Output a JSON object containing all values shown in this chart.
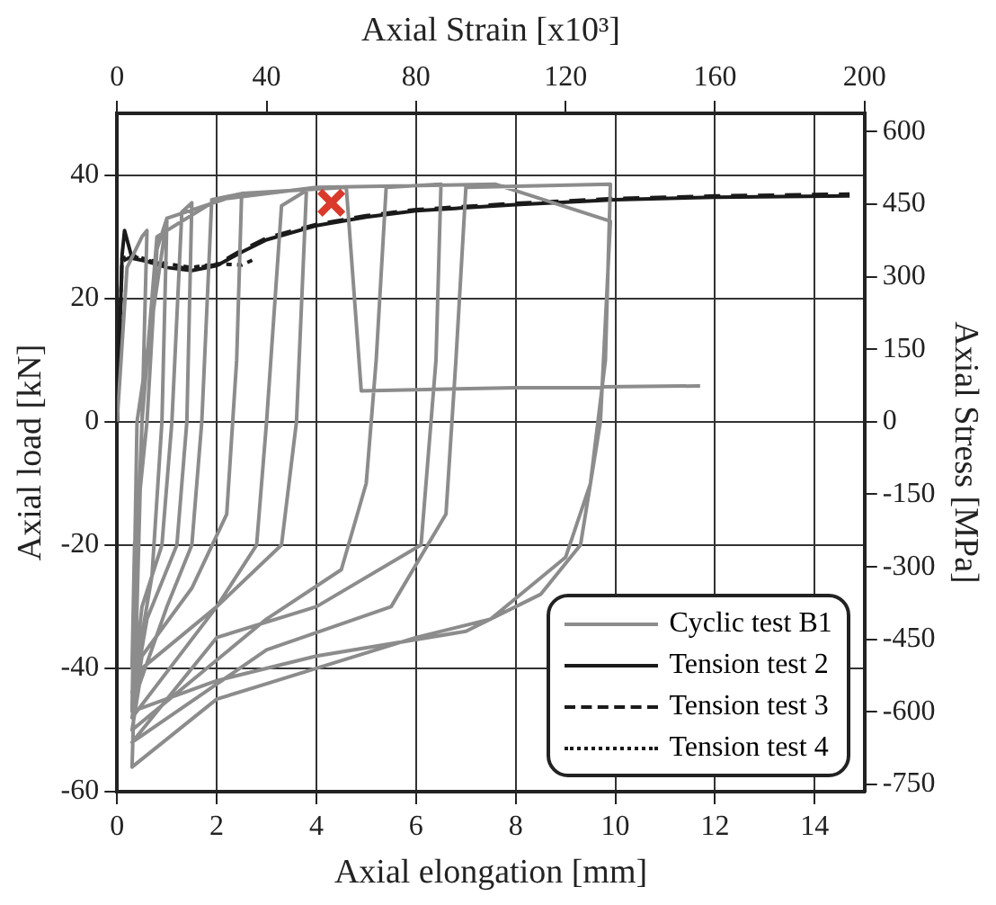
{
  "chart_data": {
    "type": "line",
    "xlabel": "Axial elongation [mm]",
    "ylabel": "Axial load [kN]",
    "y2label": "Axial Stress [MPa]",
    "x2label": "Axial Strain [x10³]",
    "xlim": [
      0,
      15
    ],
    "xticks": [
      0,
      2,
      4,
      6,
      8,
      10,
      12,
      14
    ],
    "ylim": [
      -60,
      50
    ],
    "yticks": [
      -60,
      -40,
      -20,
      0,
      20,
      40
    ],
    "x2lim": [
      0,
      200
    ],
    "x2ticks": [
      0,
      40,
      80,
      120,
      160,
      200
    ],
    "y2lim": [
      -765,
      638
    ],
    "y2ticks": [
      -750,
      -600,
      -450,
      -300,
      -150,
      0,
      150,
      300,
      450,
      600
    ],
    "grid": true,
    "legend": "bottom right",
    "series": [
      {
        "name": "Cyclic test B1",
        "color": "#8c8c8c",
        "line_style": "solid",
        "x": [
          0,
          0.2,
          0.5,
          0.6,
          0.5,
          0.4,
          0.3,
          0.35,
          0.6,
          0.8,
          1.0,
          0.9,
          0.7,
          0.3,
          0.5,
          0.9,
          1.1,
          1.3,
          1.5,
          1.4,
          1.2,
          0.6,
          0.3,
          1,
          1.5,
          1.7,
          1.9,
          2.5,
          2.4,
          2.2,
          1.5,
          0.5,
          0.3,
          2,
          2.8,
          3.0,
          3.3,
          3.8,
          3.6,
          3.3,
          2,
          0.5,
          0.3,
          3,
          4.5,
          5.0,
          5.2,
          5.4,
          6.5,
          6.4,
          6.1,
          4,
          2,
          0.3,
          3,
          5.5,
          6.6,
          6.8,
          7.0,
          9.9,
          9.8,
          9.5,
          9.0,
          7.5,
          6,
          4,
          2,
          0.3,
          0.4,
          0.5,
          0.8,
          2,
          4,
          7.6,
          9.9,
          9.7,
          9.3,
          8.5,
          7,
          4,
          2,
          0.3,
          0.4,
          1,
          2.5,
          4.6,
          4.9,
          8,
          11.7
        ],
        "values": [
          0,
          25,
          30,
          31,
          0,
          -20,
          -40,
          -20,
          0,
          28,
          33,
          0,
          -25,
          -44,
          -30,
          -20,
          0,
          34,
          35.5,
          0,
          -20,
          -32,
          -46,
          -30,
          -20,
          0,
          36,
          37,
          10,
          -15,
          -27,
          -38,
          -48,
          -30,
          -20,
          0,
          35,
          37.5,
          0,
          -20,
          -30,
          -40,
          -50,
          -32,
          -24,
          -10,
          10,
          38,
          38.5,
          10,
          -20,
          -30,
          -35,
          -52,
          -37,
          -30,
          -15,
          10,
          38,
          38.5,
          10,
          -10,
          -22,
          -32,
          -35,
          -40,
          -45,
          -56,
          -30,
          0,
          30,
          36,
          38,
          38.5,
          32.5,
          0,
          -20,
          -28,
          -34,
          -38,
          -42,
          -47,
          0,
          33,
          37,
          38,
          5,
          5.5,
          5.8
        ]
      },
      {
        "name": "Tension test 2",
        "color": "#1a1a1a",
        "line_style": "solid",
        "x": [
          0,
          0.1,
          0.15,
          0.3,
          0.6,
          1,
          1.5,
          2,
          2.5,
          3,
          4,
          5,
          6,
          8,
          10,
          12,
          14.7
        ],
        "values": [
          0,
          27,
          31,
          26.5,
          26,
          25,
          24.5,
          25.3,
          27.5,
          29.5,
          31.8,
          33.2,
          34.2,
          35.2,
          36,
          36.4,
          36.6
        ]
      },
      {
        "name": "Tension test 3",
        "color": "#1a1a1a",
        "line_style": "dashed",
        "x": [
          0,
          0.1,
          0.3,
          0.6,
          1,
          1.5,
          2,
          2.5,
          3,
          4,
          5,
          6,
          8,
          10,
          12,
          14.7
        ],
        "values": [
          0,
          26,
          26.8,
          26.2,
          25.3,
          24.8,
          25.5,
          27.8,
          29.8,
          32,
          33.4,
          34.4,
          35.4,
          36.2,
          36.6,
          36.9
        ]
      },
      {
        "name": "Tension test 4",
        "color": "#1a1a1a",
        "line_style": "dotted",
        "x": [
          0,
          0.1,
          0.3,
          0.6,
          1,
          1.5,
          2,
          2.5,
          2.8
        ],
        "values": [
          0,
          26.5,
          27,
          26.3,
          25.6,
          25,
          25.6,
          25.4,
          26.5
        ]
      },
      {
        "type": "scatter",
        "color": "#d93a2b",
        "marker": "cross",
        "x": [
          4.3
        ],
        "values": [
          35.5
        ]
      }
    ]
  }
}
